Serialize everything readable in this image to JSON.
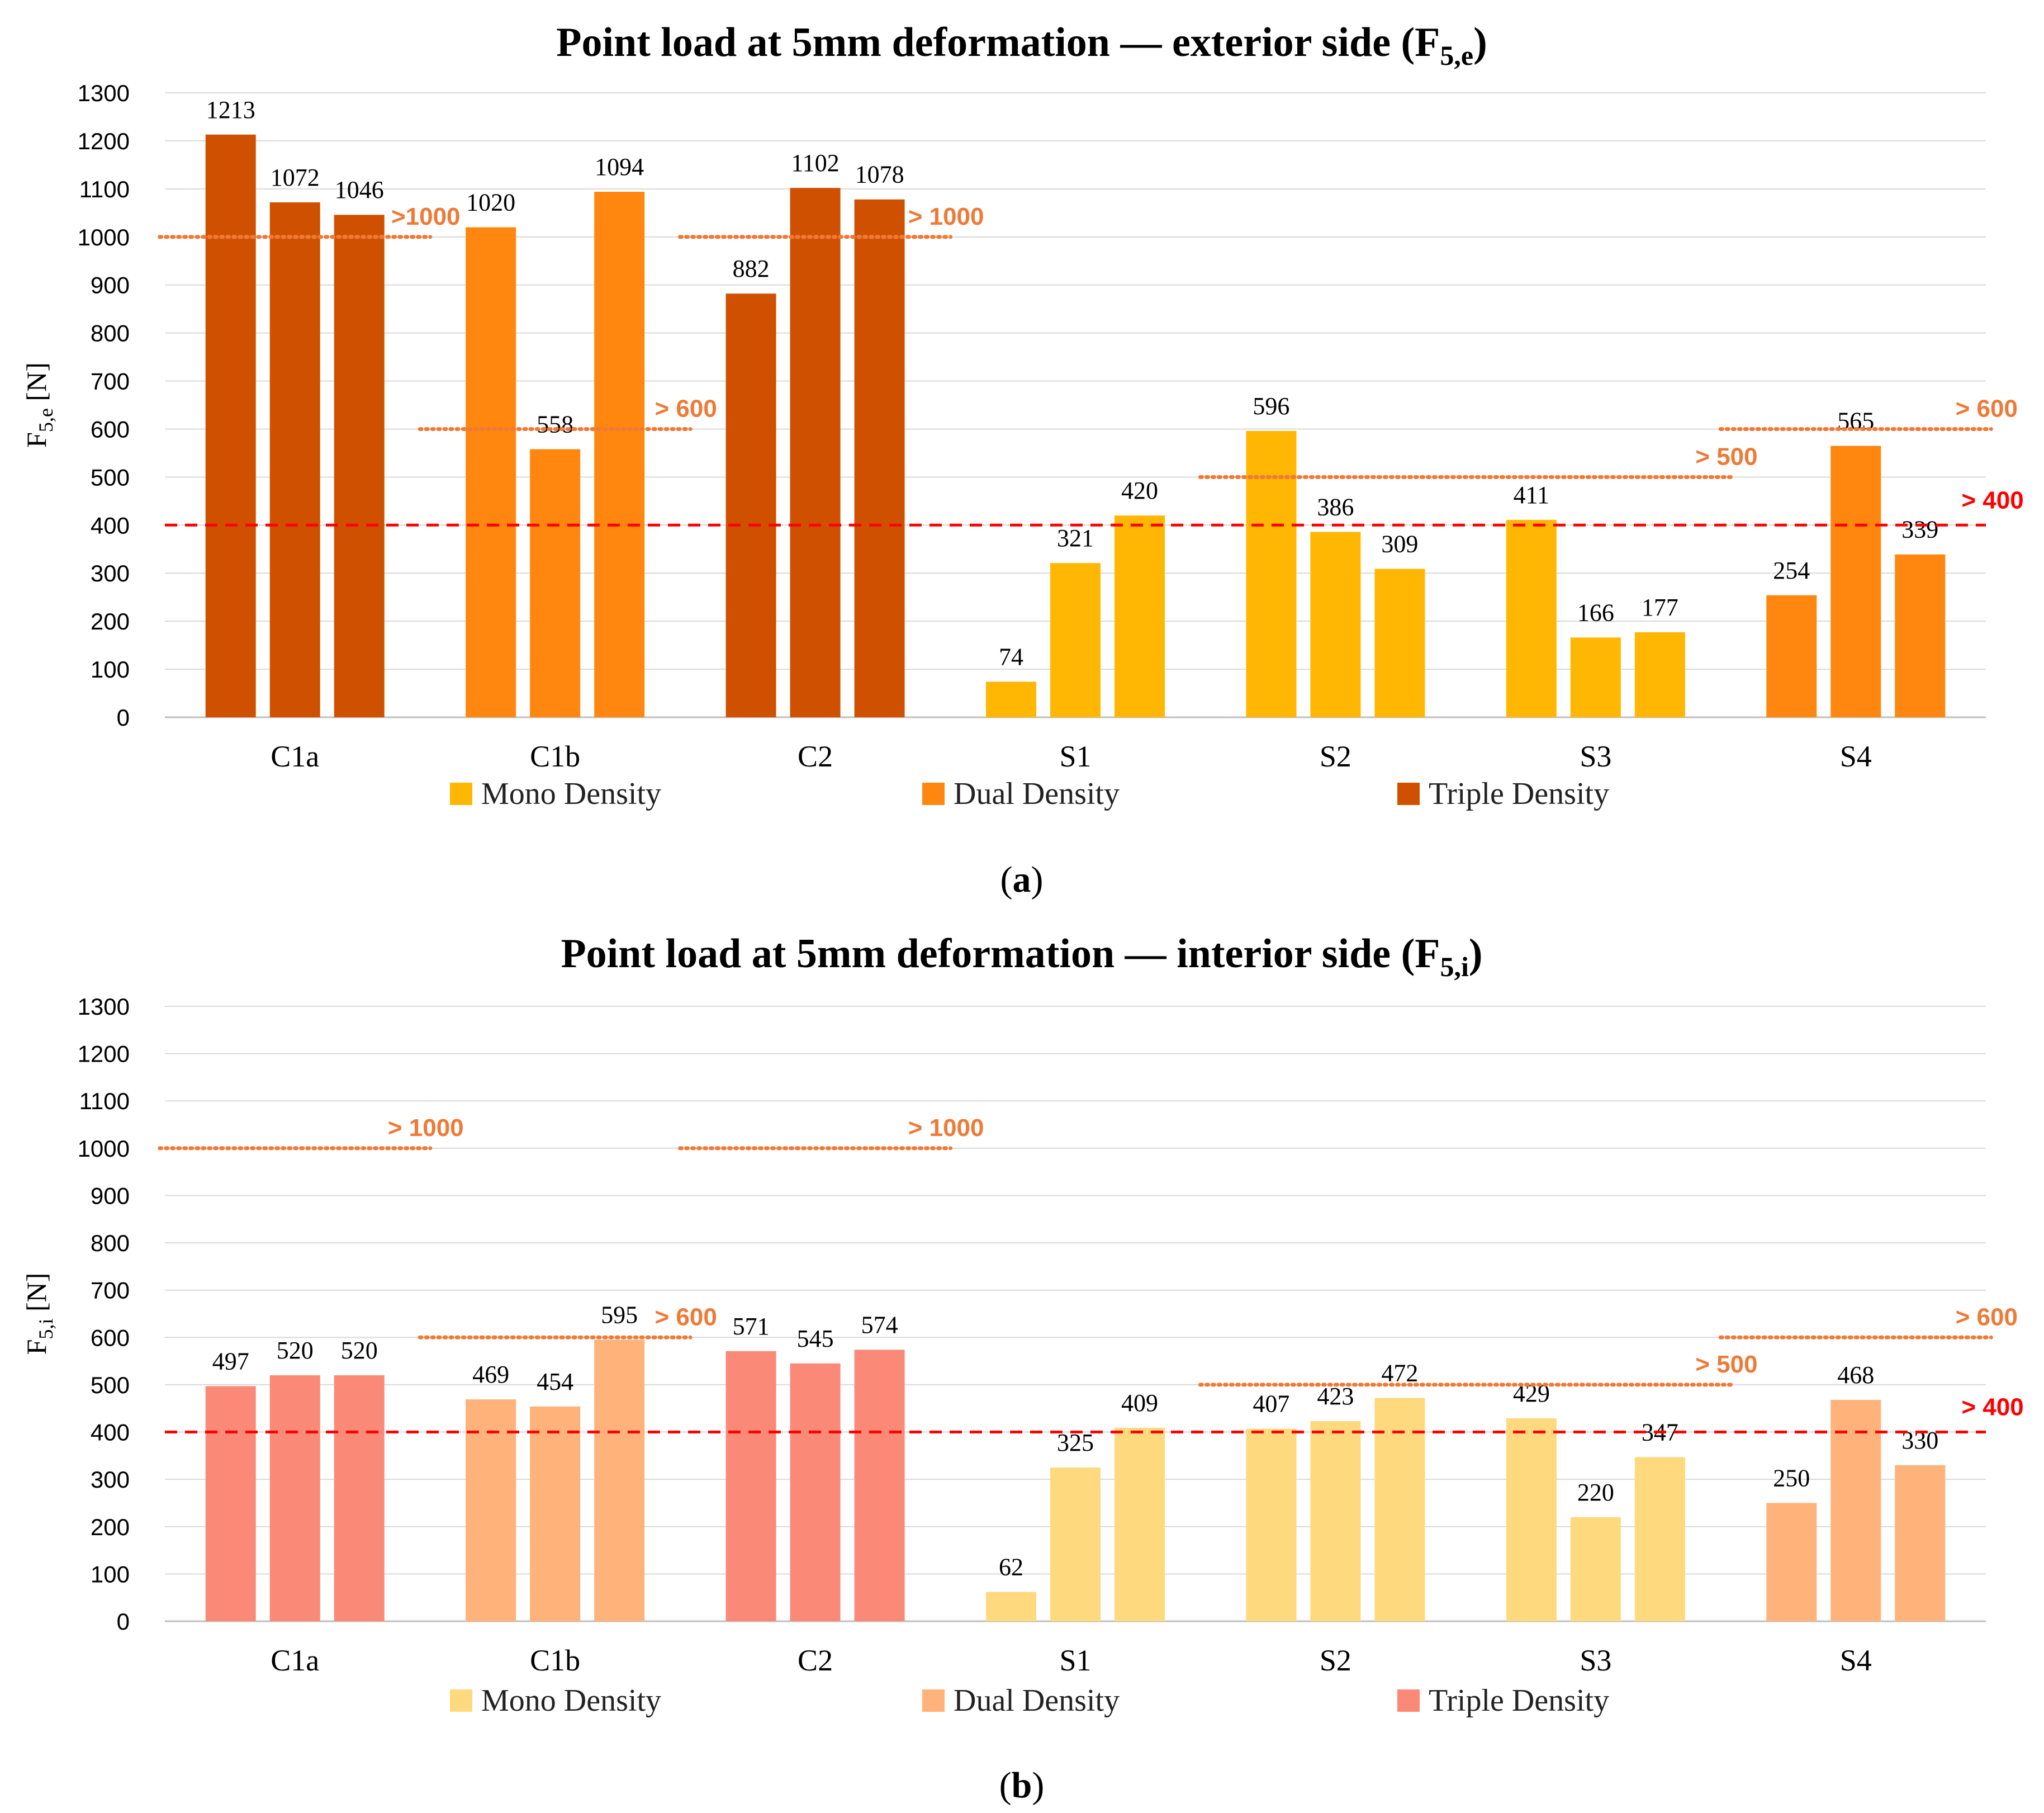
{
  "chart_data": [
    {
      "type": "bar",
      "title_main": "Point load at 5mm deformation — exterior side (F",
      "title_sub": "5,e",
      "title_close": ")",
      "ylabel_main": "F",
      "ylabel_sub": "5,e",
      "ylabel_unit": " [N]",
      "ylim": [
        0,
        1300
      ],
      "yticks": [
        0,
        100,
        200,
        300,
        400,
        500,
        600,
        700,
        800,
        900,
        1000,
        1100,
        1200,
        1300
      ],
      "categories": [
        "C1a",
        "C1b",
        "C2",
        "S1",
        "S2",
        "S3",
        "S4"
      ],
      "values": [
        [
          1213,
          1072,
          1046
        ],
        [
          1020,
          558,
          1094
        ],
        [
          882,
          1102,
          1078
        ],
        [
          74,
          321,
          420
        ],
        [
          596,
          386,
          309
        ],
        [
          411,
          166,
          177
        ],
        [
          254,
          565,
          339
        ]
      ],
      "density": [
        [
          "Triple",
          "Triple",
          "Triple"
        ],
        [
          "Dual",
          "Dual",
          "Dual"
        ],
        [
          "Triple",
          "Triple",
          "Triple"
        ],
        [
          "Mono",
          "Mono",
          "Mono"
        ],
        [
          "Mono",
          "Mono",
          "Mono"
        ],
        [
          "Mono",
          "Mono",
          "Mono"
        ],
        [
          "Dual",
          "Dual",
          "Dual"
        ]
      ],
      "colors": {
        "Mono": "#FFB703",
        "Dual": "#FF8710",
        "Triple": "#CF5100"
      },
      "thresholds": [
        {
          "value": 1000,
          "label": ">1000",
          "from": 0,
          "to": 0
        },
        {
          "value": 600,
          "label": "> 600",
          "from": 1,
          "to": 1
        },
        {
          "value": 1000,
          "label": "> 1000",
          "from": 2,
          "to": 2
        },
        {
          "value": 500,
          "label": "> 500",
          "from": 4,
          "to": 5
        },
        {
          "value": 600,
          "label": "> 600",
          "from": 6,
          "to": 6
        }
      ],
      "global_threshold": {
        "value": 400,
        "label": "> 400"
      },
      "legend": [
        "Mono Density",
        "Dual Density",
        "Triple Density"
      ],
      "caption": "a"
    },
    {
      "type": "bar",
      "title_main": "Point load at 5mm deformation — interior side (F",
      "title_sub": "5,i",
      "title_close": ")",
      "ylabel_main": "F",
      "ylabel_sub": "5,i",
      "ylabel_unit": " [N]",
      "ylim": [
        0,
        1300
      ],
      "yticks": [
        0,
        100,
        200,
        300,
        400,
        500,
        600,
        700,
        800,
        900,
        1000,
        1100,
        1200,
        1300
      ],
      "categories": [
        "C1a",
        "C1b",
        "C2",
        "S1",
        "S2",
        "S3",
        "S4"
      ],
      "values": [
        [
          497,
          520,
          520
        ],
        [
          469,
          454,
          595
        ],
        [
          571,
          545,
          574
        ],
        [
          62,
          325,
          409
        ],
        [
          407,
          423,
          472
        ],
        [
          429,
          220,
          347
        ],
        [
          250,
          468,
          330
        ]
      ],
      "density": [
        [
          "Triple",
          "Triple",
          "Triple"
        ],
        [
          "Dual",
          "Dual",
          "Dual"
        ],
        [
          "Triple",
          "Triple",
          "Triple"
        ],
        [
          "Mono",
          "Mono",
          "Mono"
        ],
        [
          "Mono",
          "Mono",
          "Mono"
        ],
        [
          "Mono",
          "Mono",
          "Mono"
        ],
        [
          "Dual",
          "Dual",
          "Dual"
        ]
      ],
      "colors": {
        "Mono": "#FFD97D",
        "Dual": "#FFB27A",
        "Triple": "#FA8977"
      },
      "thresholds": [
        {
          "value": 1000,
          "label": "> 1000",
          "from": 0,
          "to": 0
        },
        {
          "value": 600,
          "label": "> 600",
          "from": 1,
          "to": 1
        },
        {
          "value": 1000,
          "label": "> 1000",
          "from": 2,
          "to": 2
        },
        {
          "value": 500,
          "label": "> 500",
          "from": 4,
          "to": 5
        },
        {
          "value": 600,
          "label": "> 600",
          "from": 6,
          "to": 6
        }
      ],
      "global_threshold": {
        "value": 400,
        "label": "> 400"
      },
      "legend": [
        "Mono Density",
        "Dual Density",
        "Triple Density"
      ],
      "caption": "b"
    }
  ]
}
